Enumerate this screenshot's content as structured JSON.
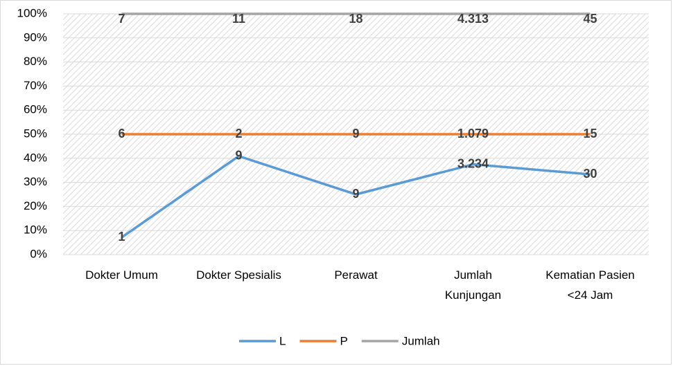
{
  "chart_data": {
    "type": "line",
    "stacking": "percent",
    "categories": [
      "Dokter Umum",
      "Dokter Spesialis",
      "Perawat",
      "Jumlah\nKunjungan",
      "Kematian Pasien\n<24 Jam"
    ],
    "series": [
      {
        "name": "L",
        "color": "#5b9bd5",
        "values": [
          1,
          9,
          9,
          3234,
          30
        ],
        "value_labels": [
          "1",
          "9",
          "9",
          "3.234",
          "30"
        ]
      },
      {
        "name": "P",
        "color": "#ed7d31",
        "values": [
          6,
          2,
          9,
          1079,
          15
        ],
        "value_labels": [
          "6",
          "2",
          "9",
          "1.079",
          "15"
        ]
      },
      {
        "name": "Jumlah",
        "color": "#a5a5a5",
        "values": [
          7,
          11,
          18,
          4313,
          45
        ],
        "value_labels": [
          "7",
          "11",
          "18",
          "4.313",
          "45"
        ]
      }
    ],
    "ylim": [
      0,
      100
    ],
    "yticks": [
      {
        "value": 0,
        "label": "0%"
      },
      {
        "value": 10,
        "label": "10%"
      },
      {
        "value": 20,
        "label": "20%"
      },
      {
        "value": 30,
        "label": "30%"
      },
      {
        "value": 40,
        "label": "40%"
      },
      {
        "value": 50,
        "label": "50%"
      },
      {
        "value": 60,
        "label": "60%"
      },
      {
        "value": 70,
        "label": "70%"
      },
      {
        "value": 80,
        "label": "80%"
      },
      {
        "value": 90,
        "label": "90%"
      },
      {
        "value": 100,
        "label": "100%"
      }
    ],
    "grid": true,
    "legend": "bottom"
  }
}
